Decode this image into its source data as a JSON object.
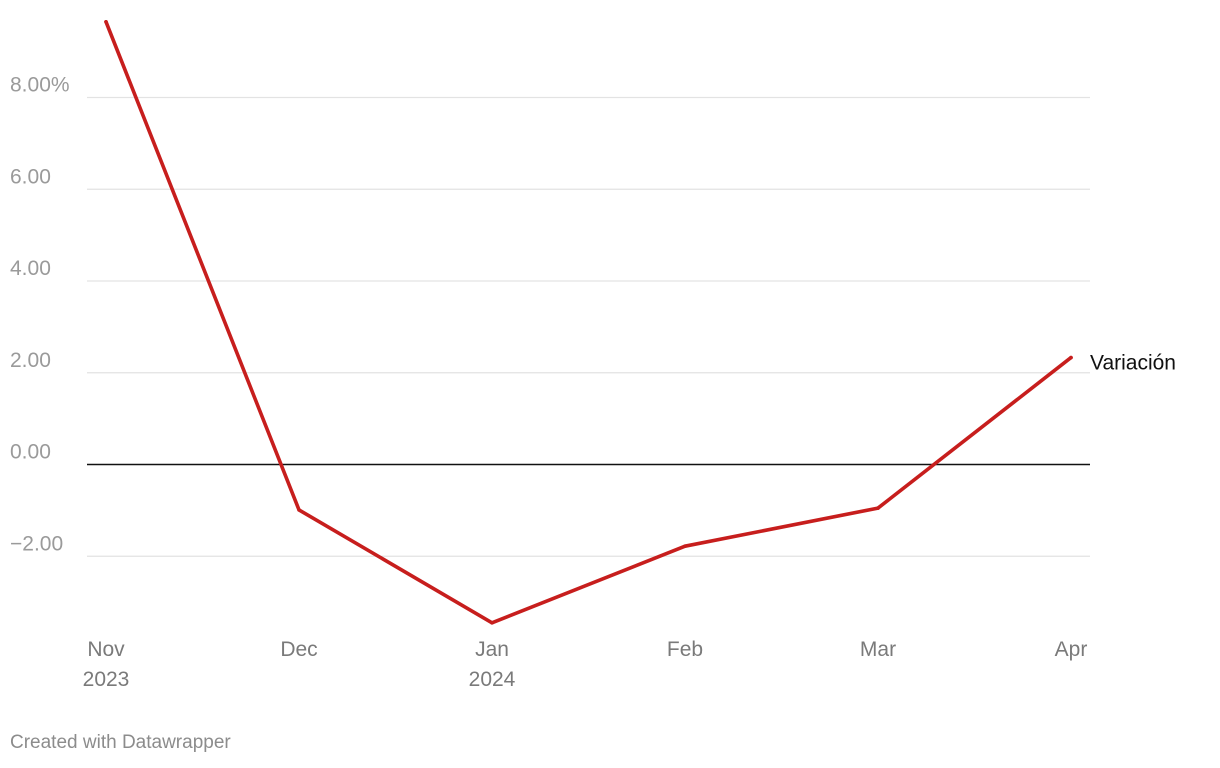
{
  "chart_data": {
    "type": "line",
    "x": [
      "2023-11",
      "2023-12",
      "2024-01",
      "2024-02",
      "2024-03",
      "2024-04"
    ],
    "x_tick_labels": [
      {
        "month": "Nov",
        "year": "2023"
      },
      {
        "month": "Dec",
        "year": ""
      },
      {
        "month": "Jan",
        "year": "2024"
      },
      {
        "month": "Feb",
        "year": ""
      },
      {
        "month": "Mar",
        "year": ""
      },
      {
        "month": "Apr",
        "year": ""
      }
    ],
    "series": [
      {
        "name": "Variación",
        "values": [
          9.65,
          -0.99,
          -3.45,
          -1.78,
          -0.95,
          2.33
        ],
        "color": "#c71e1d"
      }
    ],
    "y_ticks": [
      -2,
      0,
      2,
      4,
      6,
      8
    ],
    "y_tick_labels": [
      "−2.00",
      "0.00",
      "2.00",
      "4.00",
      "6.00",
      "8.00%"
    ],
    "ylim": [
      -3.7,
      9.8
    ],
    "grid": true,
    "zero_line": true,
    "title": "",
    "xlabel": "",
    "ylabel": ""
  },
  "footer": {
    "credit": "Created with Datawrapper"
  },
  "colors": {
    "line": "#c71e1d",
    "grid": "#e3e3e3",
    "zero_line": "#111111"
  }
}
